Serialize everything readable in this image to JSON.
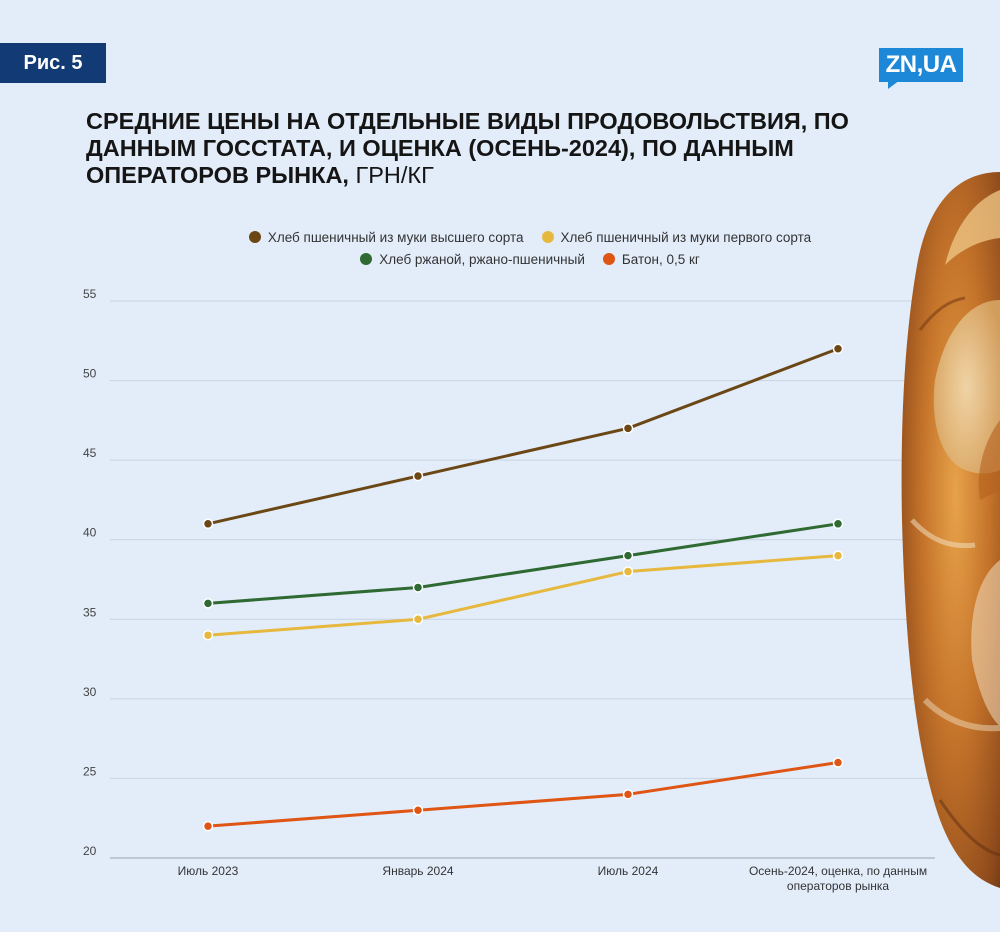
{
  "figure_label": "Рис. 5",
  "logo_text": "ZN,UA",
  "title_main": "СРЕДНИЕ ЦЕНЫ НА ОТДЕЛЬНЫЕ ВИДЫ ПРОДОВОЛЬСТВИЯ, ПО ДАННЫМ ГОССТАТА, И ОЦЕНКА (ОСЕНЬ-2024), ПО ДАННЫМ ОПЕРАТОРОВ РЫНКА,",
  "title_unit": "ГРН/КГ",
  "chart_data": {
    "type": "line",
    "categories": [
      "Июль 2023",
      "Январь 2024",
      "Июль 2024",
      "Осень-2024, оценка, по данным операторов рынка"
    ],
    "ylim": [
      20,
      55
    ],
    "yticks": [
      20,
      25,
      30,
      35,
      40,
      45,
      50,
      55
    ],
    "grid": true,
    "legend_position": "top-center",
    "series": [
      {
        "name": "Хлеб пшеничный из муки высшего сорта",
        "color": "#6b4716",
        "values": [
          41,
          44,
          47,
          52
        ]
      },
      {
        "name": "Хлеб пшеничный из муки первого сорта",
        "color": "#e6b83e",
        "values": [
          34,
          35,
          38,
          39
        ]
      },
      {
        "name": "Хлеб ржаной, ржано-пшеничный",
        "color": "#2e6a31",
        "values": [
          36,
          37,
          39,
          41
        ]
      },
      {
        "name": "Батон, 0,5 кг",
        "color": "#df5514",
        "values": [
          22,
          23,
          24,
          26
        ]
      }
    ]
  }
}
